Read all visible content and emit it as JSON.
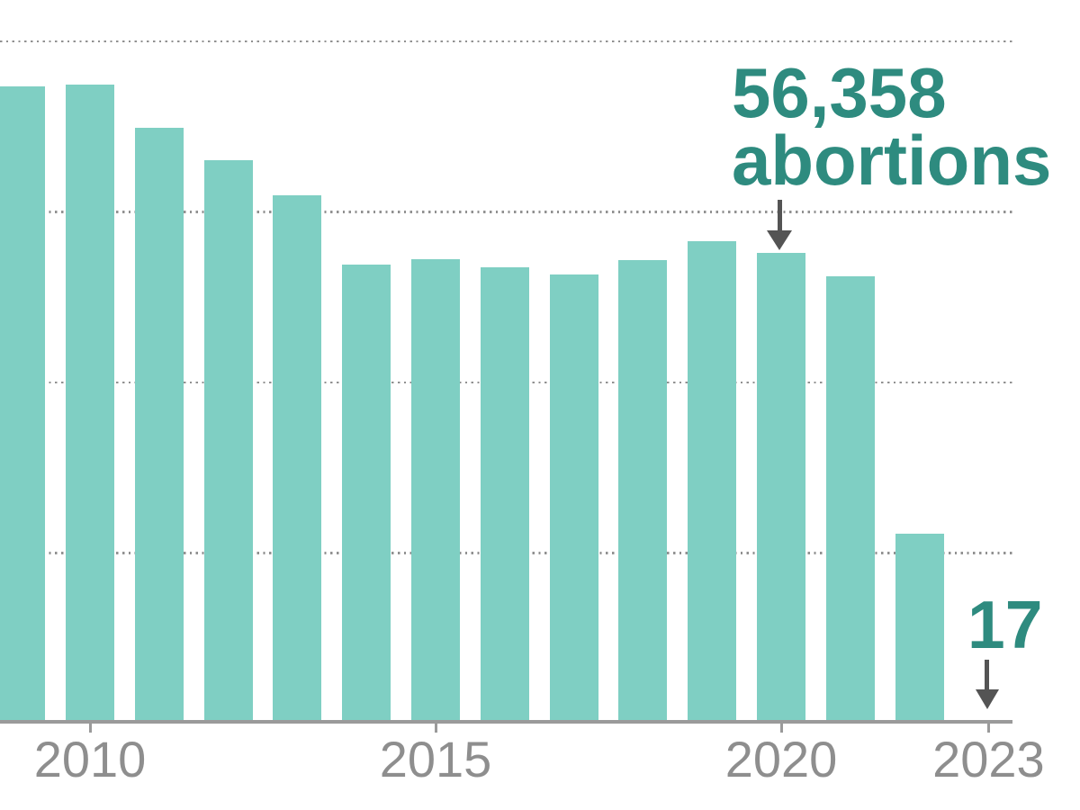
{
  "chart_data": {
    "type": "bar",
    "title": "",
    "xlabel": "",
    "ylabel": "",
    "categories": [
      2009,
      2010,
      2011,
      2012,
      2013,
      2014,
      2015,
      2016,
      2017,
      2018,
      2019,
      2020,
      2021,
      2022,
      2023
    ],
    "values": [
      76400,
      76600,
      71400,
      67500,
      63300,
      55000,
      55600,
      54600,
      53800,
      55500,
      57800,
      56358,
      53500,
      22500,
      17
    ],
    "unit": "abortions",
    "xticks": [
      2010,
      2015,
      2020,
      2023
    ],
    "xtick_labels": [
      "2010",
      "2015",
      "2020",
      "2023"
    ],
    "ylim": [
      0,
      86900
    ],
    "gridline_interval": 20000,
    "grid_style": "dotted-horizontal",
    "legend_position": "none",
    "annotations": [
      {
        "year": 2020,
        "lines": [
          "56,358",
          "abortions"
        ]
      },
      {
        "year": 2023,
        "lines": [
          "17"
        ]
      }
    ]
  },
  "colors": {
    "background": "#FFFFFF",
    "bar": "#7FCFC3",
    "annotation_text": "#2E8B7F",
    "axis": "#9A9A9A",
    "gridline": "#919191",
    "tick_label": "#8E8E8E",
    "arrow": "#545454"
  }
}
